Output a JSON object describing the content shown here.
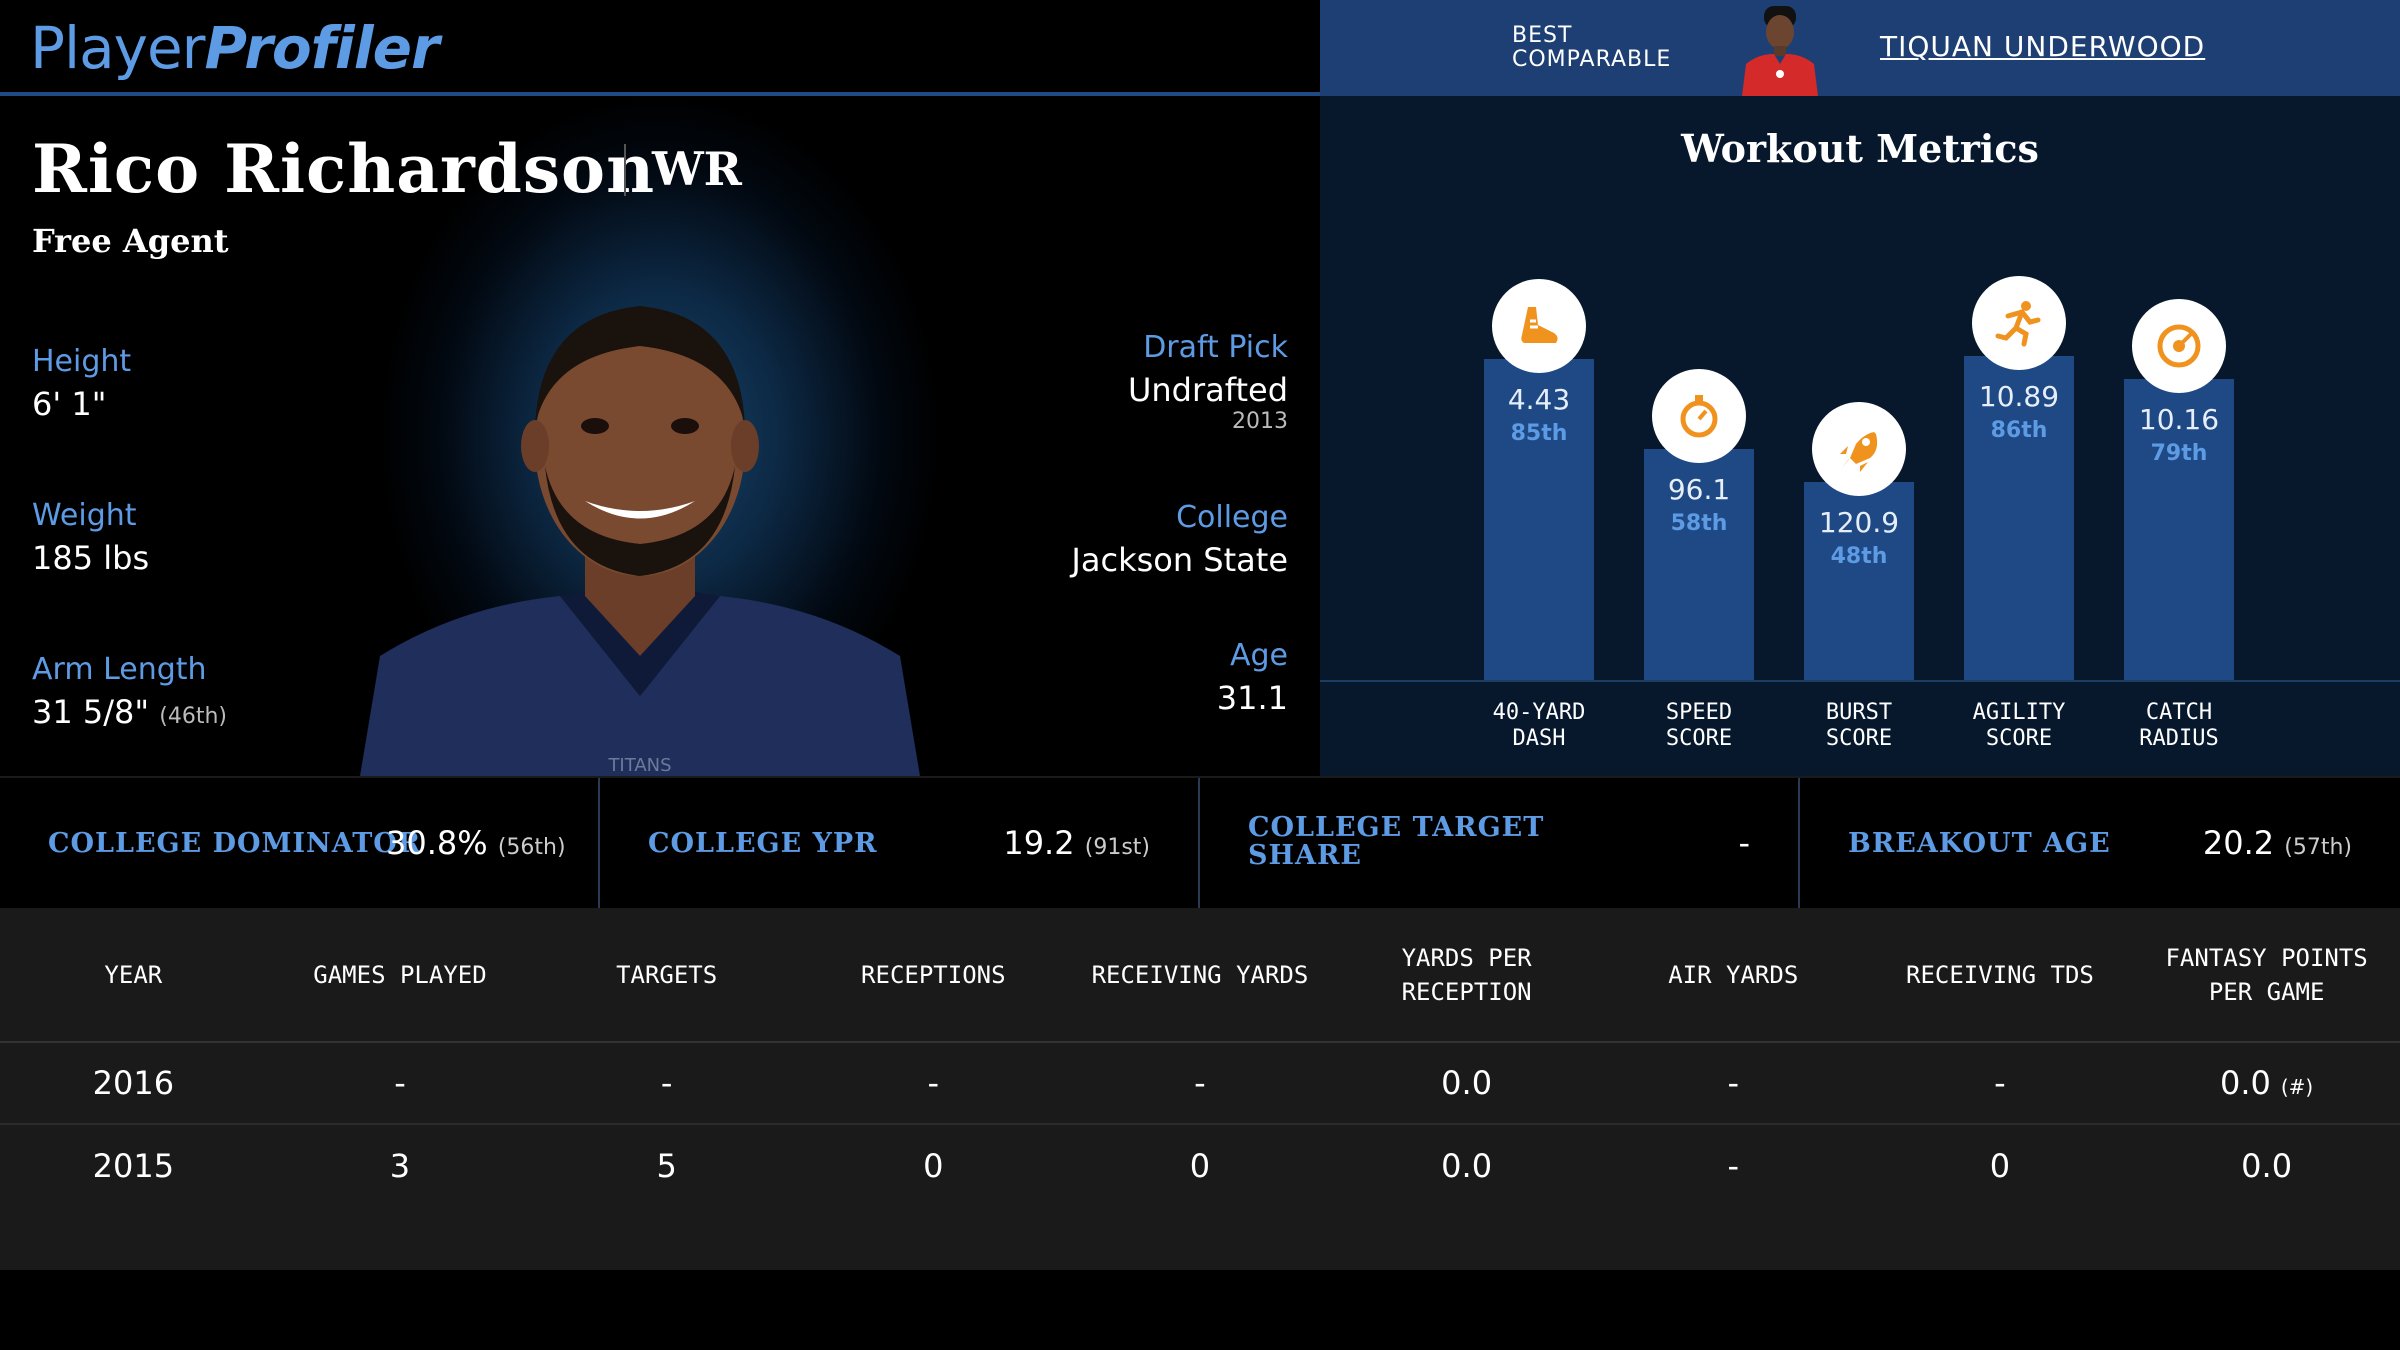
{
  "header": {
    "logo_part1": "Player",
    "logo_part2": "Profiler",
    "comparable_label_line1": "BEST",
    "comparable_label_line2": "COMPARABLE",
    "comparable_name": "TIQUAN UNDERWOOD"
  },
  "player": {
    "name": "Rico Richardson",
    "position": "WR",
    "team": "Free Agent",
    "height_label": "Height",
    "height_value": "6' 1\"",
    "weight_label": "Weight",
    "weight_value": "185 lbs",
    "arm_label": "Arm Length",
    "arm_value": "31 5/8\"",
    "arm_pct": "(46th)",
    "draft_label": "Draft Pick",
    "draft_value": "Undrafted",
    "draft_year": "2013",
    "college_label": "College",
    "college_value": "Jackson State",
    "age_label": "Age",
    "age_value": "31.1",
    "jersey_text": "TITANS"
  },
  "workout": {
    "title": "Workout Metrics",
    "metrics": [
      {
        "label_line1": "40-YARD",
        "label_line2": "DASH",
        "value": "4.43",
        "percentile": "85th",
        "percentile_num": 85,
        "icon": "shoe-icon"
      },
      {
        "label_line1": "SPEED",
        "label_line2": "SCORE",
        "value": "96.1",
        "percentile": "58th",
        "percentile_num": 58,
        "icon": "stopwatch-icon"
      },
      {
        "label_line1": "BURST",
        "label_line2": "SCORE",
        "value": "120.9",
        "percentile": "48th",
        "percentile_num": 48,
        "icon": "rocket-icon"
      },
      {
        "label_line1": "AGILITY",
        "label_line2": "SCORE",
        "value": "10.89",
        "percentile": "86th",
        "percentile_num": 86,
        "icon": "runner-icon"
      },
      {
        "label_line1": "CATCH",
        "label_line2": "RADIUS",
        "value": "10.16",
        "percentile": "79th",
        "percentile_num": 79,
        "icon": "target-icon"
      }
    ]
  },
  "strip": {
    "dominator_label": "COLLEGE DOMINATOR",
    "dominator_value": "30.8%",
    "dominator_pct": "(56th)",
    "ypr_label": "COLLEGE YPR",
    "ypr_value": "19.2",
    "ypr_pct": "(91st)",
    "target_label_line1": "COLLEGE TARGET",
    "target_label_line2": "SHARE",
    "target_value": "-",
    "breakout_label": "BREAKOUT AGE",
    "breakout_value": "20.2",
    "breakout_pct": "(57th)"
  },
  "stats_table": {
    "headers": [
      "YEAR",
      "GAMES PLAYED",
      "TARGETS",
      "RECEPTIONS",
      "RECEIVING YARDS",
      "YARDS PER RECEPTION",
      "AIR YARDS",
      "RECEIVING TDS",
      "FANTASY POINTS PER GAME"
    ],
    "rows": [
      {
        "cells": [
          "2016",
          "-",
          "-",
          "-",
          "-",
          "0.0",
          "-",
          "-",
          "0.0"
        ],
        "note": "(#)"
      },
      {
        "cells": [
          "2015",
          "3",
          "5",
          "0",
          "0",
          "0.0",
          "-",
          "0",
          "0.0"
        ],
        "note": ""
      }
    ]
  },
  "colors": {
    "accent_blue": "#5d9be4",
    "bar_blue": "#1f4984",
    "icon_orange": "#f0921e",
    "header_blue": "#1d3f73"
  }
}
